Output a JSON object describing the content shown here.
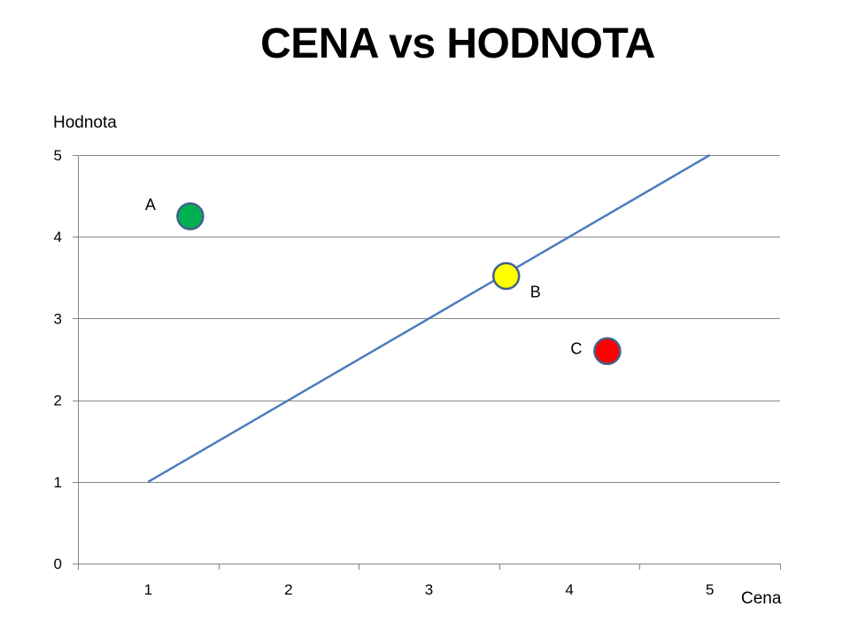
{
  "chart_data": {
    "type": "scatter",
    "title": "CENA vs HODNOTA",
    "xlabel": "Cena",
    "ylabel": "Hodnota",
    "xlim": [
      0.5,
      5.5
    ],
    "ylim": [
      0,
      5
    ],
    "x_ticks": [
      1,
      2,
      3,
      4,
      5
    ],
    "y_ticks": [
      0,
      1,
      2,
      3,
      4,
      5
    ],
    "grid": "horizontal",
    "points": [
      {
        "label": "A",
        "x": 1.3,
        "y": 4.25,
        "color": "#00b050"
      },
      {
        "label": "B",
        "x": 3.55,
        "y": 3.52,
        "color": "#ffff00"
      },
      {
        "label": "C",
        "x": 4.27,
        "y": 2.6,
        "color": "#ff0000"
      }
    ],
    "reference_line": {
      "x": [
        1,
        5
      ],
      "y": [
        1,
        5
      ],
      "color": "#4a7ebb"
    },
    "marker_edge_color": "#41618c",
    "axis_color": "#868686",
    "grid_color": "#868686"
  }
}
